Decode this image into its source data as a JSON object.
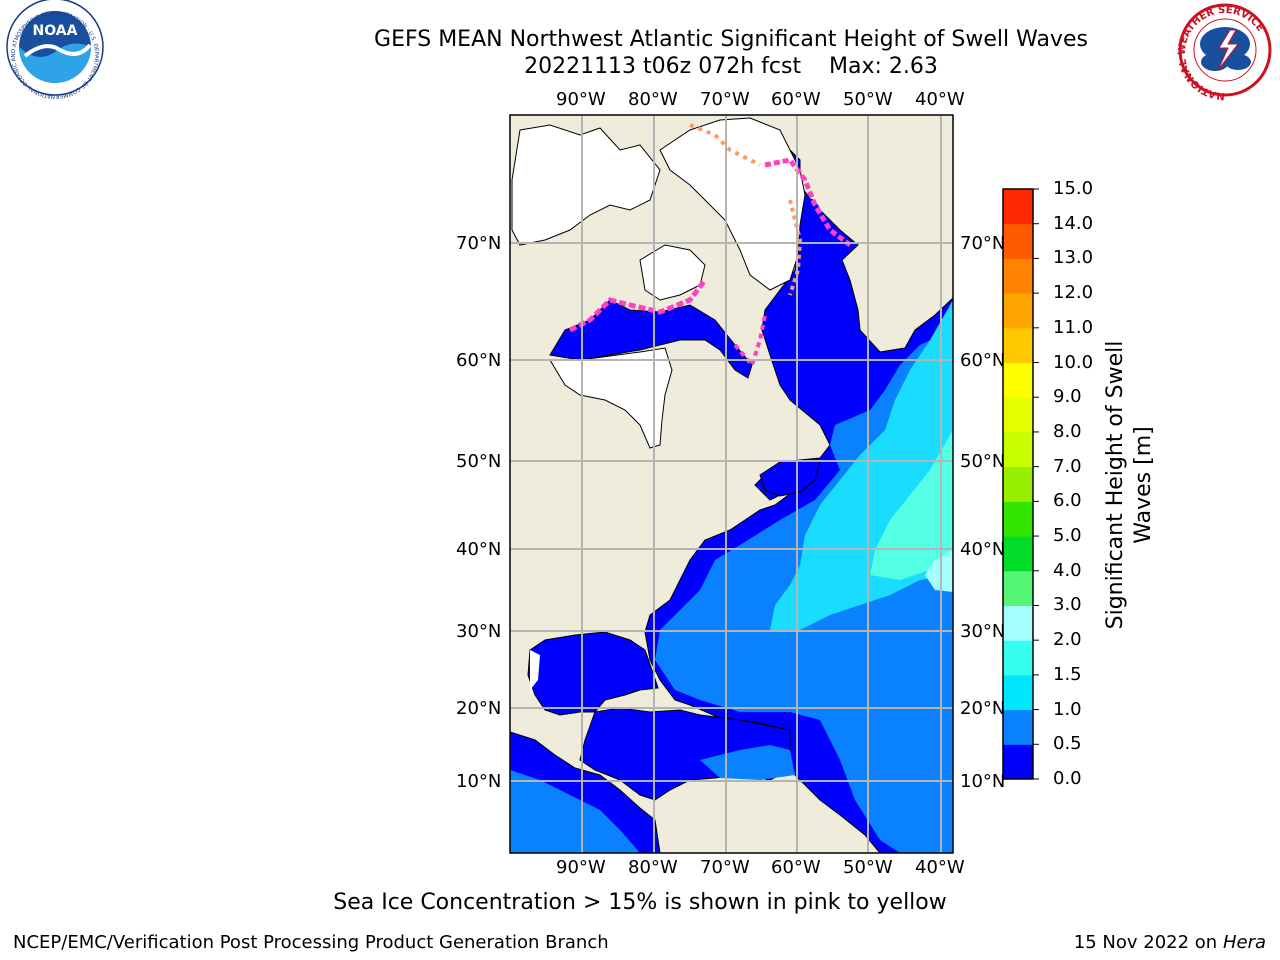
{
  "header": {
    "title_line1": "GEFS MEAN Northwest Atlantic Significant Height of Swell Waves",
    "title_line2": "20221113 t06z 072h fcst    Max: 2.63"
  },
  "logos": {
    "left": "NOAA",
    "left_ring_text": "NATIONAL OCEANIC AND ATMOSPHERIC ADMINISTRATION · U.S. DEPARTMENT OF COMMERCE",
    "right_ring_text": "NATIONAL WEATHER SERVICE"
  },
  "map": {
    "longitude_labels": [
      "90°W",
      "80°W",
      "70°W",
      "60°W",
      "50°W",
      "40°W"
    ],
    "latitude_labels": [
      "70°N",
      "60°N",
      "50°N",
      "40°N",
      "30°N",
      "20°N",
      "10°N"
    ],
    "colors": {
      "land": "#efecdb",
      "ocean_deep": "#0000ff",
      "ocean_mid": "#0a82ff",
      "ocean_light": "#1adcff",
      "ice": "#ffffff",
      "grid": "#b4b4b4"
    }
  },
  "colorbar": {
    "title": "Significant Height of Swell Waves [m]",
    "ticks": [
      "0.0",
      "0.5",
      "1.0",
      "1.5",
      "2.0",
      "3.0",
      "4.0",
      "5.0",
      "6.0",
      "7.0",
      "8.0",
      "9.0",
      "10.0",
      "11.0",
      "12.0",
      "13.0",
      "14.0",
      "15.0"
    ],
    "colors": [
      "#0000ff",
      "#0a82ff",
      "#00e6ff",
      "#36fff0",
      "#a5ffff",
      "#55f575",
      "#00dc28",
      "#32e600",
      "#96f000",
      "#c8ff00",
      "#e6ff00",
      "#ffff00",
      "#ffc800",
      "#ffa500",
      "#ff8200",
      "#ff5a00",
      "#ff2800"
    ]
  },
  "caption": "Sea Ice Concentration > 15% is shown in pink to yellow",
  "footer": {
    "left": "NCEP/EMC/Verification Post Processing Product Generation Branch",
    "right_date": "15 Nov 2022 on",
    "right_machine": "Hera"
  }
}
